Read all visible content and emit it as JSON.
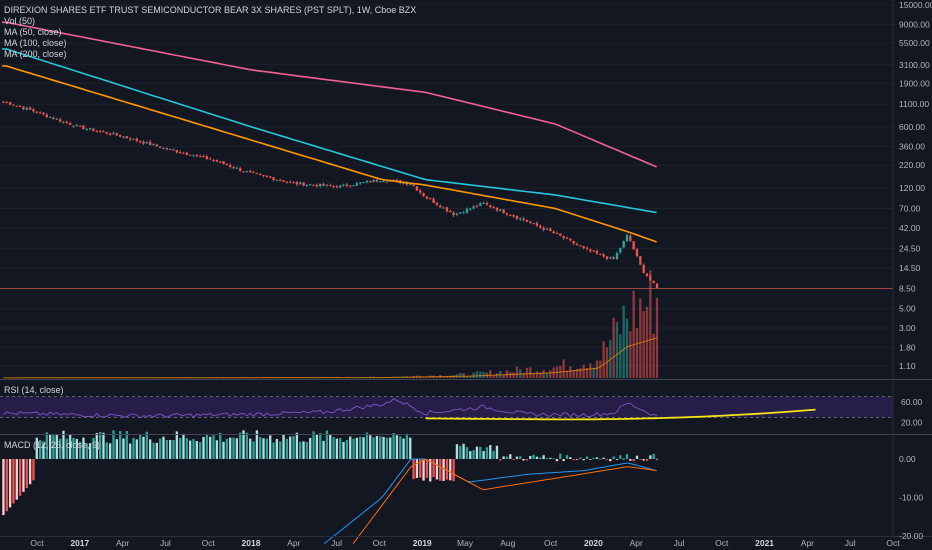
{
  "legend": {
    "title": "DIREXION SHARES ETF TRUST SEMICONDUCTOR BEAR 3X SHARES (PST SPLT), 1W, Cboe BZX",
    "vol": "Vol (50)",
    "ma50": "MA (50, close)",
    "ma100": "MA (100, close)",
    "ma200": "MA (200, close)"
  },
  "rsi_label": "RSI (14, close)",
  "macd_label": "MACD (12, 26, close, 9)",
  "colors": {
    "background": "#131722",
    "up": "#26a69a",
    "down": "#ef5350",
    "ma50": "#ff9800",
    "ma100": "#26c6da",
    "ma200": "#f06292",
    "rsi": "#7e57c2",
    "rsi_band": "#2a1f4f",
    "trend": "#f5e31a",
    "macd_line": "#2196f3",
    "signal_line": "#ff6d00",
    "last_price_line": "#e0594b"
  },
  "chart_data": [
    {
      "type": "candlestick",
      "pane": "price",
      "scale": "log",
      "y_ticks": [
        "15000.00",
        "9000.00",
        "5500.00",
        "3100.00",
        "1900.00",
        "1100.00",
        "600.00",
        "360.00",
        "220.00",
        "120.00",
        "70.00",
        "42.00",
        "24.50",
        "14.50",
        "8.50",
        "5.00",
        "3.00",
        "1.80",
        "1.10"
      ],
      "y_tick_values": [
        15000,
        9000,
        5500,
        3100,
        1900,
        1100,
        600,
        360,
        220,
        120,
        70,
        42,
        24.5,
        14.5,
        8.5,
        5,
        3,
        1.8,
        1.1
      ],
      "x_ticks": [
        "Oct",
        "2017",
        "Apr",
        "Jul",
        "Oct",
        "2018",
        "Apr",
        "Jul",
        "Oct",
        "2019",
        "May",
        "Aug",
        "Oct",
        "2020",
        "Apr",
        "Jul",
        "Oct",
        "2021",
        "Apr",
        "Jul",
        "Oct"
      ],
      "x_ticks_bold": [
        "2017",
        "2018",
        "2019",
        "2020",
        "2021"
      ],
      "close_anchors": [
        {
          "date": "2016-08",
          "close": 1150
        },
        {
          "date": "2016-10",
          "close": 900
        },
        {
          "date": "2017-01",
          "close": 600
        },
        {
          "date": "2017-04",
          "close": 470
        },
        {
          "date": "2017-07",
          "close": 340
        },
        {
          "date": "2017-10",
          "close": 260
        },
        {
          "date": "2018-01",
          "close": 175
        },
        {
          "date": "2018-04",
          "close": 135
        },
        {
          "date": "2018-07",
          "close": 125
        },
        {
          "date": "2018-10",
          "close": 150
        },
        {
          "date": "2018-12",
          "close": 135
        },
        {
          "date": "2019-01",
          "close": 95
        },
        {
          "date": "2019-03",
          "close": 60
        },
        {
          "date": "2019-05",
          "close": 80
        },
        {
          "date": "2019-08",
          "close": 50
        },
        {
          "date": "2019-10",
          "close": 36
        },
        {
          "date": "2019-12",
          "close": 24
        },
        {
          "date": "2020-02",
          "close": 18
        },
        {
          "date": "2020-03",
          "close": 35
        },
        {
          "date": "2020-04",
          "close": 14
        },
        {
          "date": "2020-05",
          "close": 8.5
        }
      ],
      "series": [
        {
          "name": "MA (50, close)",
          "anchors": [
            {
              "date": "2016-08",
              "value": 3000
            },
            {
              "date": "2018-10",
              "value": 150
            },
            {
              "date": "2019-01",
              "value": 130
            },
            {
              "date": "2019-10",
              "value": 70
            },
            {
              "date": "2020-03",
              "value": 38
            },
            {
              "date": "2020-05",
              "value": 29
            }
          ]
        },
        {
          "name": "MA (100, close)",
          "anchors": [
            {
              "date": "2016-08",
              "value": 4700
            },
            {
              "date": "2018-01",
              "value": 600
            },
            {
              "date": "2019-01",
              "value": 150
            },
            {
              "date": "2019-10",
              "value": 100
            },
            {
              "date": "2020-05",
              "value": 63
            }
          ]
        },
        {
          "name": "MA (200, close)",
          "anchors": [
            {
              "date": "2016-08",
              "value": 9500
            },
            {
              "date": "2018-01",
              "value": 2700
            },
            {
              "date": "2019-01",
              "value": 1500
            },
            {
              "date": "2019-10",
              "value": 650
            },
            {
              "date": "2020-05",
              "value": 210
            }
          ]
        }
      ],
      "last_price": 8.5
    },
    {
      "type": "line",
      "pane": "rsi",
      "y_ticks": [
        "60.00",
        "20.00"
      ],
      "y_tick_values": [
        60,
        20
      ],
      "band": [
        30,
        70
      ],
      "anchors": [
        {
          "date": "2016-08",
          "value": 38
        },
        {
          "date": "2017-01",
          "value": 35
        },
        {
          "date": "2017-06",
          "value": 33
        },
        {
          "date": "2018-01",
          "value": 36
        },
        {
          "date": "2018-06",
          "value": 40
        },
        {
          "date": "2018-10",
          "value": 55
        },
        {
          "date": "2018-11",
          "value": 65
        },
        {
          "date": "2019-01",
          "value": 38
        },
        {
          "date": "2019-05",
          "value": 50
        },
        {
          "date": "2019-08",
          "value": 36
        },
        {
          "date": "2019-12",
          "value": 35
        },
        {
          "date": "2020-02",
          "value": 38
        },
        {
          "date": "2020-03",
          "value": 58
        },
        {
          "date": "2020-05",
          "value": 32
        }
      ]
    },
    {
      "type": "histogram+line",
      "pane": "macd",
      "y_ticks": [
        "0.00",
        "-10.00",
        "-20.00"
      ],
      "y_tick_values": [
        0,
        -10,
        -20
      ],
      "macd_anchors": [
        {
          "date": "2018-06",
          "value": -22
        },
        {
          "date": "2018-10",
          "value": -10
        },
        {
          "date": "2018-12",
          "value": 0
        },
        {
          "date": "2019-01",
          "value": 0
        },
        {
          "date": "2019-04",
          "value": -6
        },
        {
          "date": "2019-08",
          "value": -4
        },
        {
          "date": "2019-12",
          "value": -3
        },
        {
          "date": "2020-03",
          "value": -1
        },
        {
          "date": "2020-05",
          "value": -3
        }
      ],
      "signal_anchors": [
        {
          "date": "2018-08",
          "value": -22
        },
        {
          "date": "2018-12",
          "value": -2
        },
        {
          "date": "2019-01",
          "value": 0
        },
        {
          "date": "2019-05",
          "value": -8
        },
        {
          "date": "2019-10",
          "value": -5
        },
        {
          "date": "2020-03",
          "value": -2
        },
        {
          "date": "2020-05",
          "value": -3
        }
      ]
    }
  ]
}
